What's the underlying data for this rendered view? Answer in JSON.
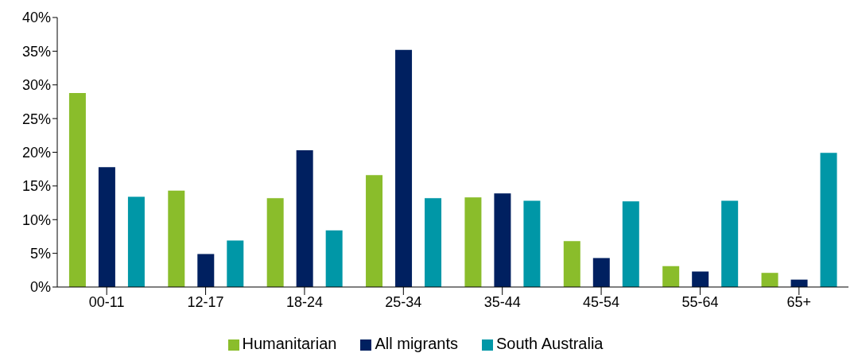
{
  "chart_data": {
    "type": "bar",
    "categories": [
      "00-11",
      "12-17",
      "18-24",
      "25-34",
      "35-44",
      "45-54",
      "55-64",
      "65+"
    ],
    "series": [
      {
        "name": "Humanitarian",
        "color": "#8abd2b",
        "values": [
          28.8,
          14.3,
          13.2,
          16.6,
          13.3,
          6.8,
          3.1,
          2.1
        ]
      },
      {
        "name": "All migrants",
        "color": "#002060",
        "values": [
          17.8,
          4.9,
          20.3,
          35.2,
          13.9,
          4.3,
          2.3,
          1.1
        ]
      },
      {
        "name": "South Australia",
        "color": "#0097a7",
        "values": [
          13.4,
          6.9,
          8.4,
          13.2,
          12.8,
          12.7,
          12.8,
          19.9
        ]
      }
    ],
    "ylim": [
      0,
      40
    ],
    "yticks": [
      {
        "value": 0,
        "label": "0%"
      },
      {
        "value": 5,
        "label": "5%"
      },
      {
        "value": 10,
        "label": "10%"
      },
      {
        "value": 15,
        "label": "15%"
      },
      {
        "value": 20,
        "label": "20%"
      },
      {
        "value": 25,
        "label": "25%"
      },
      {
        "value": 30,
        "label": "30%"
      },
      {
        "value": 35,
        "label": "35%"
      },
      {
        "value": 40,
        "label": "40%"
      }
    ],
    "grid": false,
    "legend": "bottom"
  }
}
